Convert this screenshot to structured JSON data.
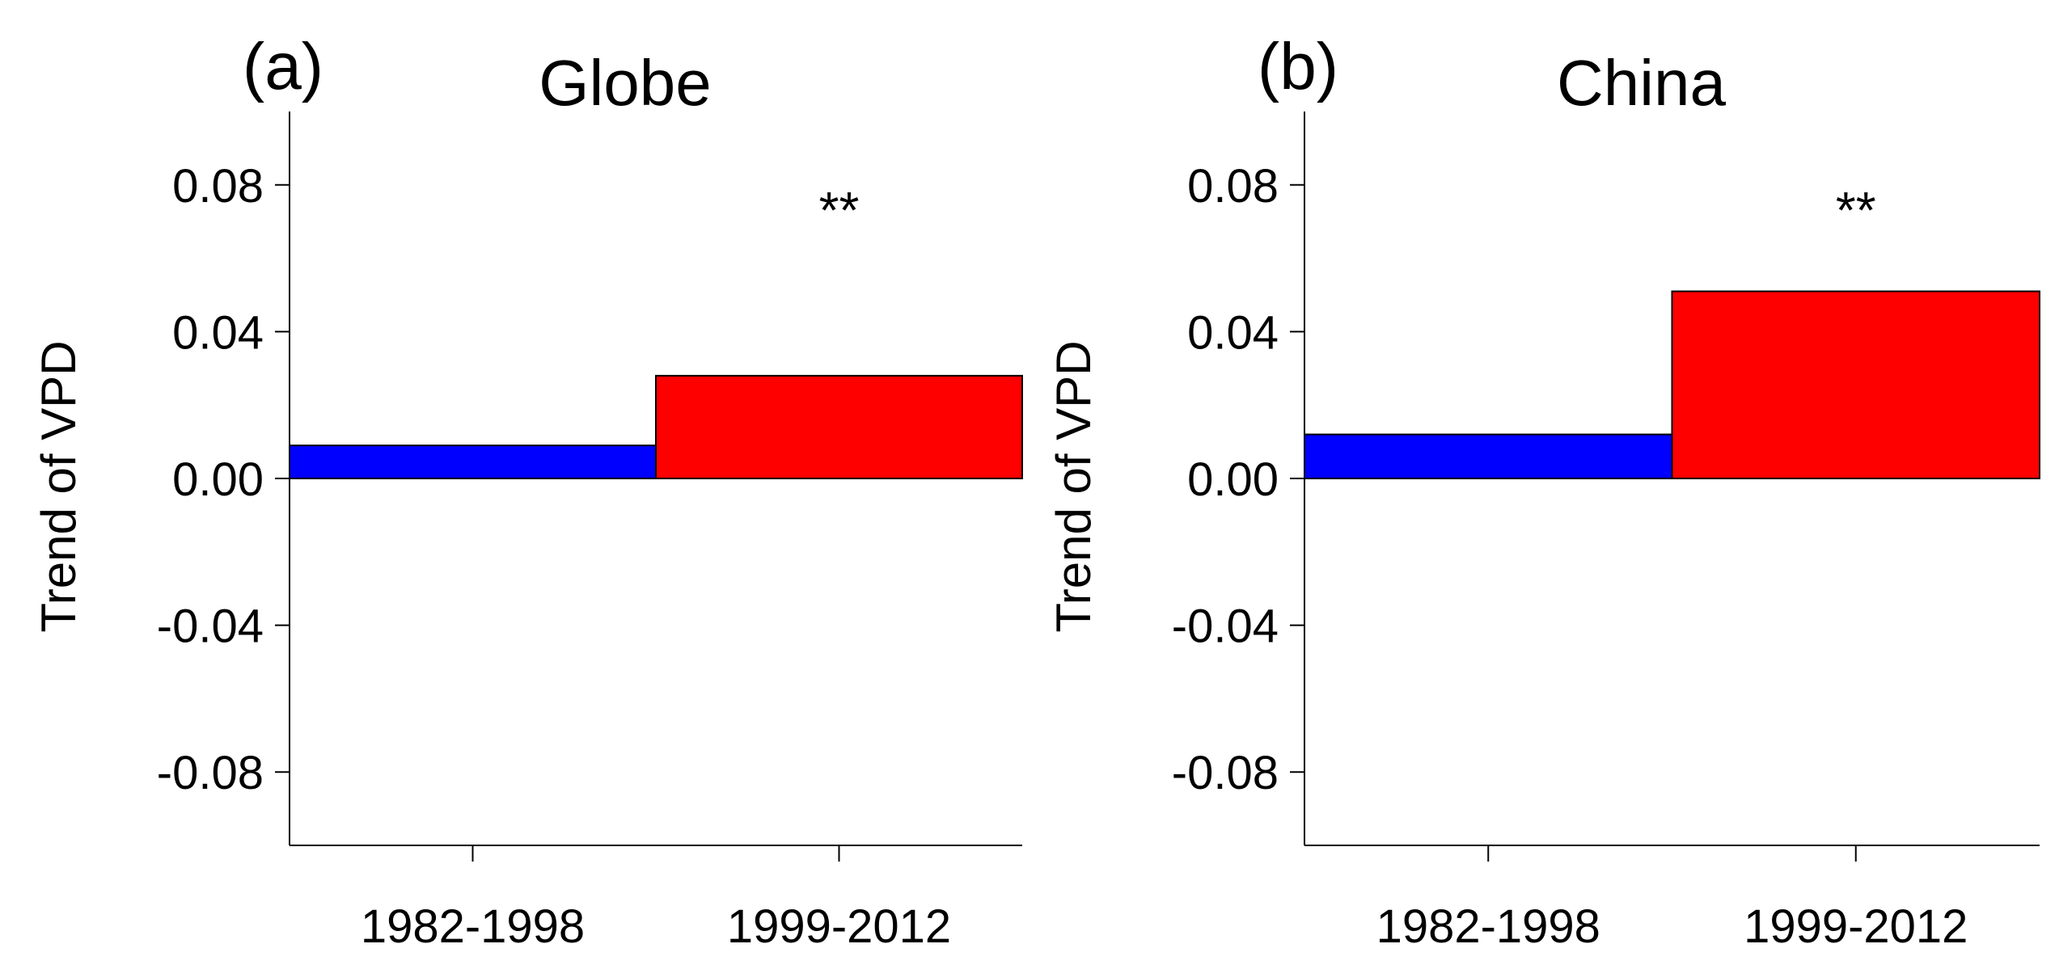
{
  "chart_data": [
    {
      "type": "bar",
      "panel_label": "(a)",
      "title": "Globe",
      "ylabel": "Trend of VPD",
      "xlabel": "",
      "categories": [
        "1982-1998",
        "1999-2012"
      ],
      "values": [
        0.009,
        0.028
      ],
      "colors": [
        "#0000ff",
        "#ff0000"
      ],
      "annotations": [
        "",
        "**"
      ],
      "ylim": [
        -0.1,
        0.1
      ],
      "yticks": [
        0.08,
        0.04,
        0.0,
        -0.04,
        -0.08
      ],
      "ytick_labels": [
        "0.08",
        "0.04",
        "0.00",
        "-0.04",
        "-0.08"
      ],
      "grid": false
    },
    {
      "type": "bar",
      "panel_label": "(b)",
      "title": "China",
      "ylabel": "Trend of VPD",
      "xlabel": "",
      "categories": [
        "1982-1998",
        "1999-2012"
      ],
      "values": [
        0.012,
        0.051
      ],
      "colors": [
        "#0000ff",
        "#ff0000"
      ],
      "annotations": [
        "",
        "**"
      ],
      "ylim": [
        -0.1,
        0.1
      ],
      "yticks": [
        0.08,
        0.04,
        0.0,
        -0.04,
        -0.08
      ],
      "ytick_labels": [
        "0.08",
        "0.04",
        "0.00",
        "-0.04",
        "-0.08"
      ],
      "grid": false
    }
  ]
}
